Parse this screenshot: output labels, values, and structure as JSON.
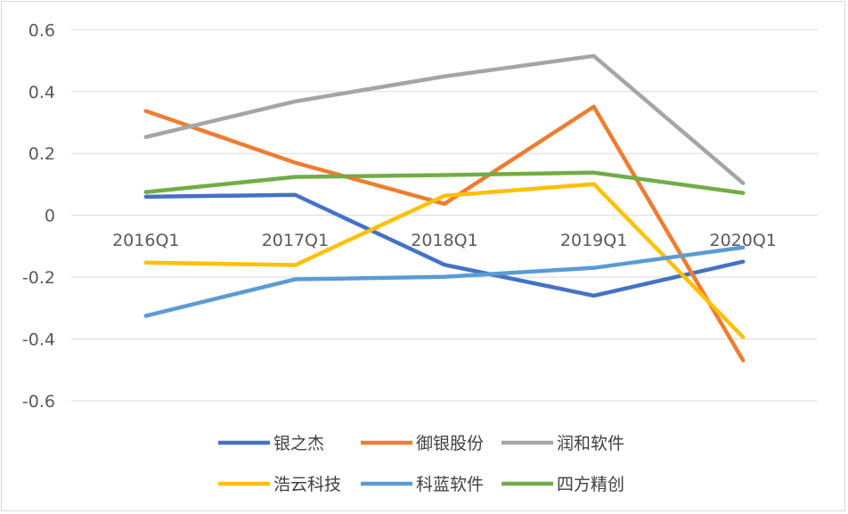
{
  "chart_data": {
    "type": "line",
    "categories": [
      "2016Q1",
      "2017Q1",
      "2018Q1",
      "2019Q1",
      "2020Q1"
    ],
    "ylim": [
      -0.6,
      0.6
    ],
    "yticks": [
      "0.6",
      "0.4",
      "0.2",
      "0",
      "-0.2",
      "-0.4",
      "-0.6"
    ],
    "ytick_values": [
      0.6,
      0.4,
      0.2,
      0,
      -0.2,
      -0.4,
      -0.6
    ],
    "grid": true,
    "legend": "bottom",
    "series": [
      {
        "name": "银之杰",
        "color": "#4472C4",
        "values": [
          0.06,
          0.066,
          -0.16,
          -0.26,
          -0.15
        ]
      },
      {
        "name": "御银股份",
        "color": "#ED7D31",
        "values": [
          0.337,
          0.17,
          0.037,
          0.351,
          -0.469
        ]
      },
      {
        "name": "润和软件",
        "color": "#A5A5A5",
        "values": [
          0.253,
          0.368,
          0.449,
          0.515,
          0.104
        ]
      },
      {
        "name": "浩云科技",
        "color": "#FFC000",
        "values": [
          -0.153,
          -0.161,
          0.063,
          0.101,
          -0.394
        ]
      },
      {
        "name": "科蓝软件",
        "color": "#5B9BD5",
        "values": [
          -0.325,
          -0.207,
          -0.199,
          -0.17,
          -0.104
        ]
      },
      {
        "name": "四方精创",
        "color": "#70AD47",
        "values": [
          0.075,
          0.124,
          0.13,
          0.138,
          0.072
        ]
      }
    ]
  }
}
